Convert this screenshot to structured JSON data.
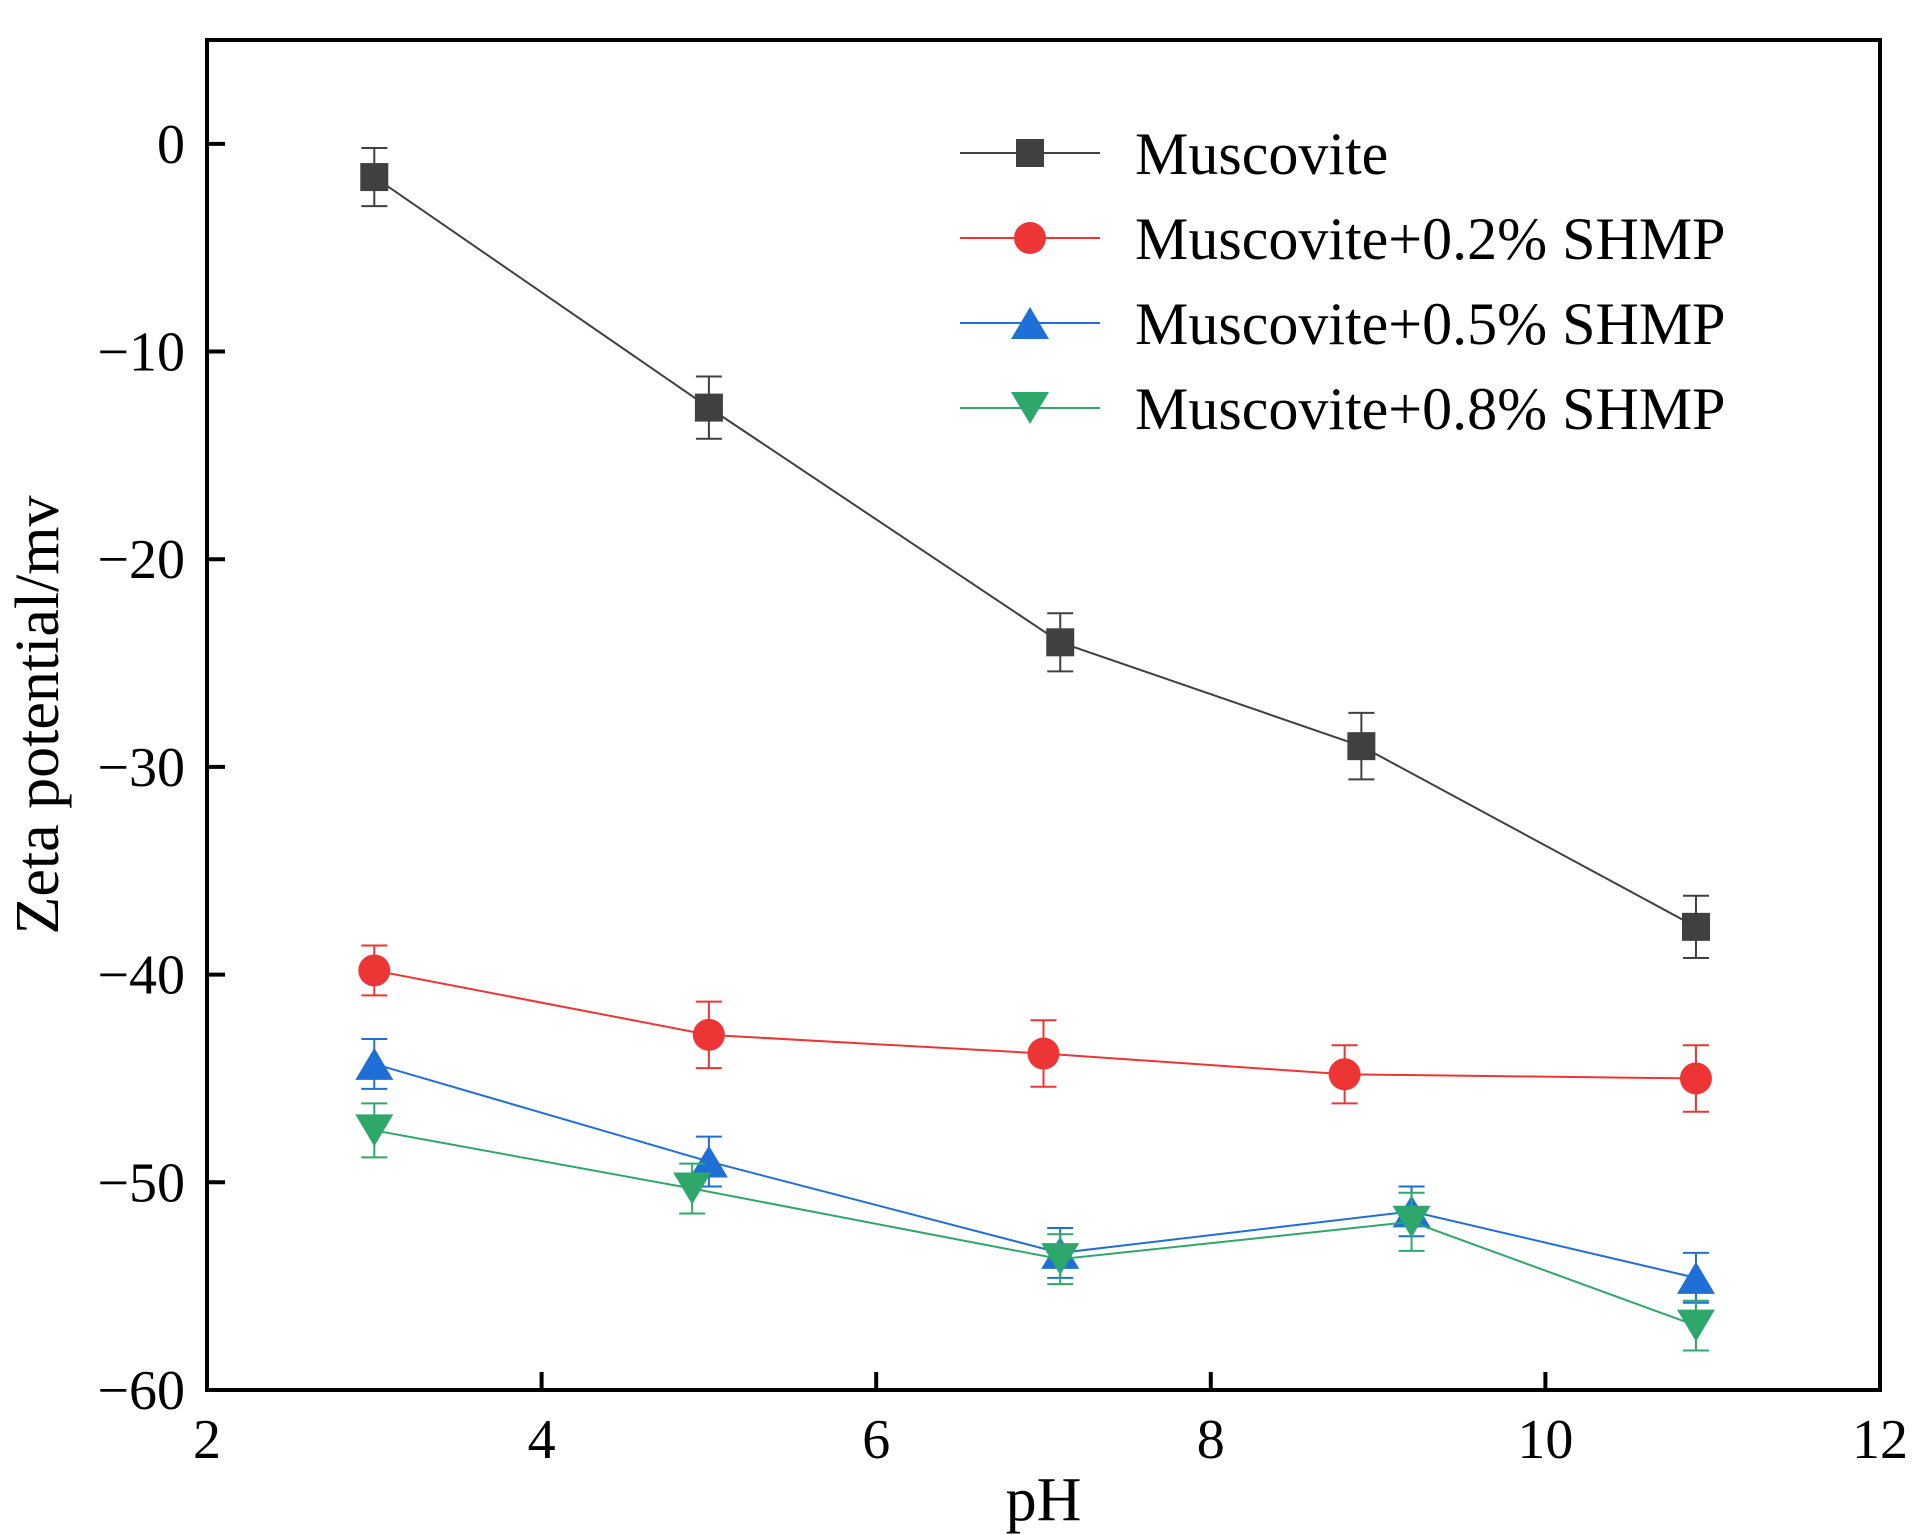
{
  "chart_data": {
    "type": "line",
    "title": "",
    "xlabel": "pH",
    "ylabel": "Zeta potential/mv",
    "xlim": [
      2,
      12
    ],
    "ylim": [
      -60,
      5
    ],
    "xticks": [
      2,
      4,
      6,
      8,
      10,
      12
    ],
    "yticks": [
      0,
      -10,
      -20,
      -30,
      -40,
      -50,
      -60
    ],
    "xtick_labels": [
      "2",
      "4",
      "6",
      "8",
      "10",
      "12"
    ],
    "ytick_labels": [
      "0",
      "−10",
      "−20",
      "−30",
      "−40",
      "−50",
      "−60"
    ],
    "grid": false,
    "legend_position": "top-right",
    "series": [
      {
        "name": "Muscovite",
        "color": "#404040",
        "marker": "square",
        "x": [
          3.0,
          5.0,
          7.1,
          8.9,
          10.9
        ],
        "y": [
          -1.6,
          -12.7,
          -24.0,
          -29.0,
          -37.7
        ],
        "err": [
          1.4,
          1.5,
          1.4,
          1.6,
          1.5
        ]
      },
      {
        "name": "Muscovite+0.2% SHMP",
        "color": "#ee3535",
        "marker": "circle",
        "x": [
          3.0,
          5.0,
          7.0,
          8.8,
          10.9
        ],
        "y": [
          -39.8,
          -42.9,
          -43.8,
          -44.8,
          -45.0
        ],
        "err": [
          1.2,
          1.6,
          1.6,
          1.4,
          1.6
        ]
      },
      {
        "name": "Muscovite+0.5% SHMP",
        "color": "#1f6fd6",
        "marker": "triangle-up",
        "x": [
          3.0,
          5.0,
          7.1,
          9.2,
          10.9
        ],
        "y": [
          -44.3,
          -49.0,
          -53.4,
          -51.4,
          -54.6
        ],
        "err": [
          1.2,
          1.2,
          1.2,
          1.2,
          1.2
        ]
      },
      {
        "name": "Muscovite+0.8% SHMP",
        "color": "#2ea86a",
        "marker": "triangle-down",
        "x": [
          3.0,
          4.9,
          7.1,
          9.2,
          10.9
        ],
        "y": [
          -47.5,
          -50.3,
          -53.7,
          -51.9,
          -56.9
        ],
        "err": [
          1.3,
          1.2,
          1.2,
          1.4,
          1.2
        ]
      }
    ]
  }
}
